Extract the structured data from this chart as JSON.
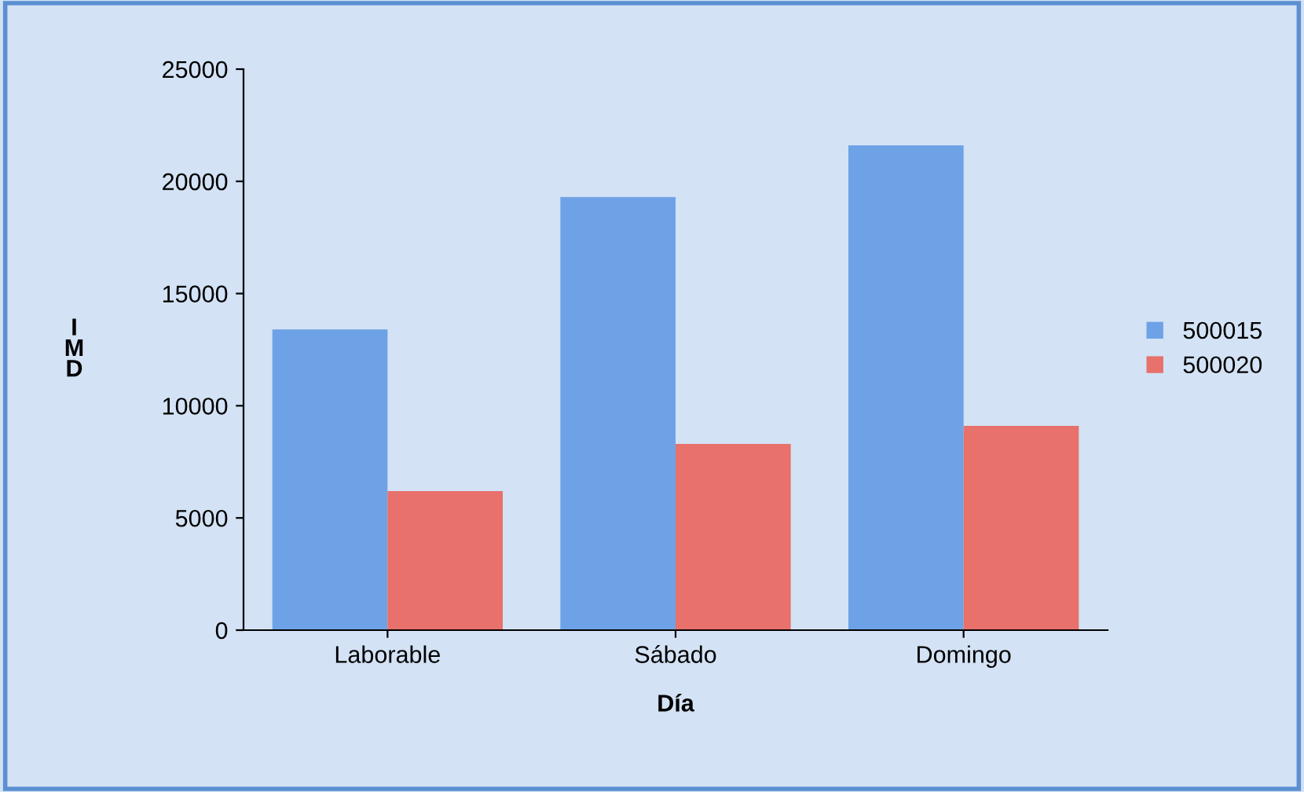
{
  "chart_data": {
    "type": "bar",
    "xlabel": "Día",
    "ylabel": "I\nM\nD",
    "categories": [
      "Laborable",
      "Sábado",
      "Domingo"
    ],
    "series": [
      {
        "name": "500015",
        "color": "#6ea2e6",
        "values": [
          13400,
          19300,
          21600
        ]
      },
      {
        "name": "500020",
        "color": "#e8716b",
        "values": [
          6200,
          8300,
          9100
        ]
      }
    ],
    "ylim": [
      0,
      25000
    ],
    "yticks": [
      0,
      5000,
      10000,
      15000,
      20000,
      25000
    ],
    "grid": false,
    "legend": "right"
  }
}
